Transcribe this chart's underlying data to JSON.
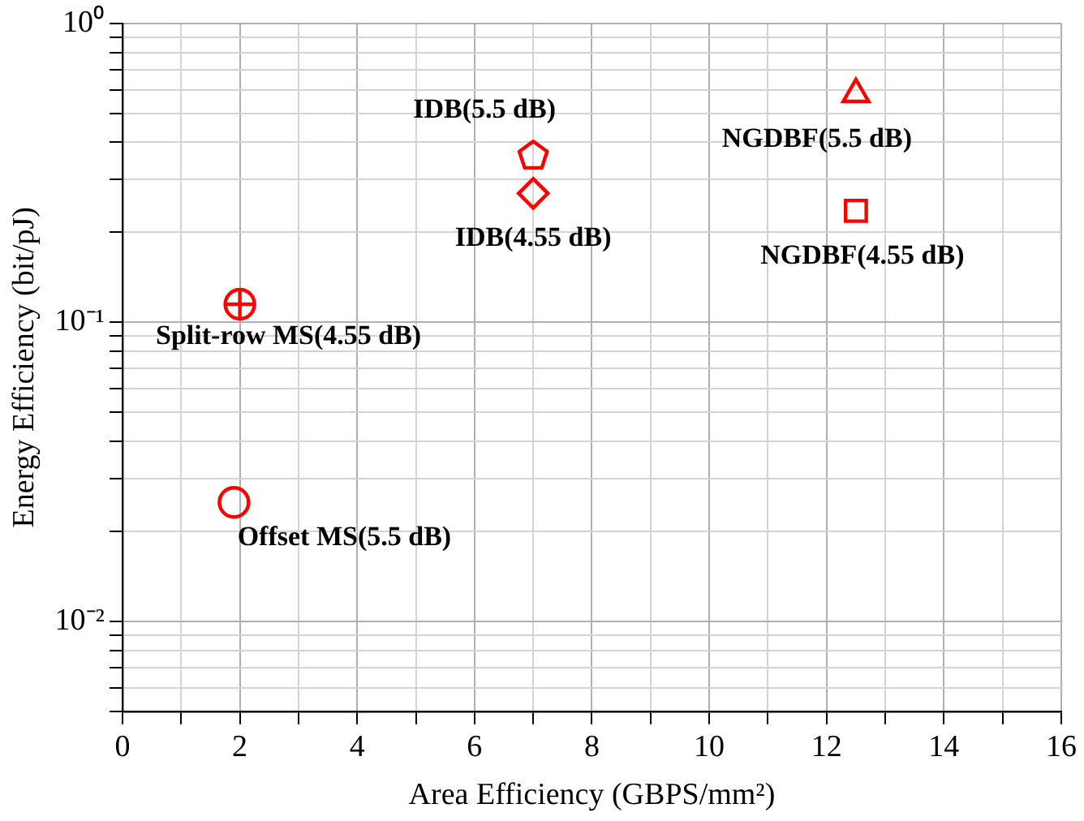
{
  "chart_data": {
    "type": "scatter",
    "xlabel": "Area Efficiency (GBPS/mm²)",
    "ylabel": "Energy Efficiency (bit/pJ)",
    "log": "y",
    "grid": true,
    "legend": false,
    "xlim": [
      0,
      16
    ],
    "xticks": [
      0,
      {
        "value": 1,
        "label": null
      },
      2,
      {
        "value": 3,
        "label": null
      },
      4,
      {
        "value": 5,
        "label": null
      },
      6,
      {
        "value": 7,
        "label": null
      },
      8,
      {
        "value": 9,
        "label": null
      },
      10,
      {
        "value": 11,
        "label": null
      },
      12,
      {
        "value": 13,
        "label": null
      },
      14,
      {
        "value": 15,
        "label": null
      },
      16
    ],
    "ylim": [
      0.005,
      1
    ],
    "yticks": [
      {
        "value": 0.005,
        "label": null
      },
      {
        "value": 0.006,
        "label": null
      },
      {
        "value": 0.007,
        "label": null
      },
      {
        "value": 0.008,
        "label": null
      },
      {
        "value": 0.009,
        "label": null
      },
      {
        "value": 0.01,
        "label": "10⁻²"
      },
      {
        "value": 0.02,
        "label": null
      },
      {
        "value": 0.03,
        "label": null
      },
      {
        "value": 0.04,
        "label": null
      },
      {
        "value": 0.05,
        "label": null
      },
      {
        "value": 0.06,
        "label": null
      },
      {
        "value": 0.07,
        "label": null
      },
      {
        "value": 0.08,
        "label": null
      },
      {
        "value": 0.09,
        "label": null
      },
      {
        "value": 0.1,
        "label": "10⁻¹"
      },
      {
        "value": 0.2,
        "label": null
      },
      {
        "value": 0.3,
        "label": null
      },
      {
        "value": 0.4,
        "label": null
      },
      {
        "value": 0.5,
        "label": null
      },
      {
        "value": 0.6,
        "label": null
      },
      {
        "value": 0.7,
        "label": null
      },
      {
        "value": 0.8,
        "label": null
      },
      {
        "value": 0.9,
        "label": null
      },
      {
        "value": 1,
        "label": "10⁰"
      }
    ],
    "series": [
      {
        "name": "Offset MS(5.5 dB)",
        "color": "#ff0000",
        "marker": "circle",
        "x": [
          1.9
        ],
        "values": [
          0.025
        ]
      },
      {
        "name": "Split-row MS(4.55 dB)",
        "color": "#ff0000",
        "marker": "circle-plus",
        "x": [
          2.0
        ],
        "values": [
          0.115
        ]
      },
      {
        "name": "IDB(5.5 dB)",
        "color": "#ff0000",
        "x": [
          7.0
        ],
        "values": [
          0.36
        ]
      },
      {
        "name": "IDB(4.55 dB)",
        "color": "#ff0000",
        "marker": "diamond",
        "x": [
          7.0
        ],
        "values": [
          0.27
        ]
      },
      {
        "name": "NGDBF(5.5 dB)",
        "color": "#ff0000",
        "marker": "triangle",
        "x": [
          12.5
        ],
        "values": [
          0.58
        ]
      },
      {
        "name": "NGDBF(4.55 dB)",
        "color": "#ff0000",
        "marker": "square",
        "x": [
          12.5
        ],
        "values": [
          0.236
        ]
      }
    ]
  }
}
